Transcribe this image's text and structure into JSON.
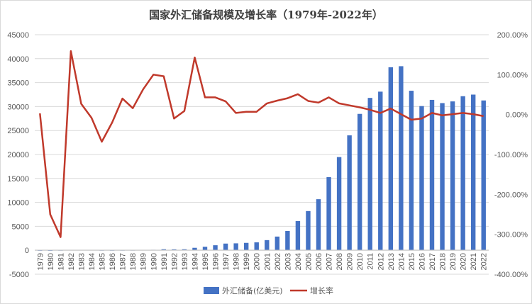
{
  "chart_data": {
    "type": "bar+line",
    "title": "国家外汇储备规模及增长率（1979年-2022年）",
    "categories": [
      "1979",
      "1980",
      "1981",
      "1982",
      "1983",
      "1984",
      "1985",
      "1986",
      "1987",
      "1988",
      "1989",
      "1990",
      "1991",
      "1992",
      "1993",
      "1994",
      "1995",
      "1996",
      "1997",
      "1998",
      "1999",
      "2000",
      "2001",
      "2002",
      "2003",
      "2004",
      "2005",
      "2006",
      "2007",
      "2008",
      "2009",
      "2010",
      "2011",
      "2012",
      "2013",
      "2014",
      "2015",
      "2016",
      "2017",
      "2018",
      "2019",
      "2020",
      "2021",
      "2022"
    ],
    "series": [
      {
        "name": "外汇储备(亿美元)",
        "type": "bar",
        "axis": "left",
        "color": "#4472c4",
        "values": [
          8,
          -13,
          27,
          70,
          89,
          82,
          26,
          21,
          29,
          34,
          56,
          111,
          217,
          194,
          212,
          516,
          736,
          1050,
          1399,
          1450,
          1547,
          1656,
          2122,
          2864,
          4033,
          6099,
          8189,
          10663,
          15282,
          19460,
          23992,
          28473,
          31811,
          33116,
          38213,
          38430,
          33304,
          30105,
          31399,
          30727,
          31079,
          32165,
          32502,
          31277
        ]
      },
      {
        "name": "增长率",
        "type": "line",
        "axis": "right",
        "color": "#c0392b",
        "values": [
          3,
          -250,
          -307,
          159,
          27,
          -8,
          -68,
          -20,
          40,
          16,
          63,
          100,
          96,
          -10,
          9,
          143,
          43,
          43,
          33,
          4,
          7,
          7,
          28,
          35,
          41,
          51,
          34,
          30,
          43,
          28,
          23,
          18,
          12,
          4,
          15,
          1,
          -13,
          -10,
          4,
          -2,
          1,
          4,
          1,
          -4
        ]
      }
    ],
    "y_left": {
      "min": -5000,
      "max": 45000,
      "step": 5000,
      "ticks": [
        "-5000",
        "0",
        "5000",
        "10000",
        "15000",
        "20000",
        "25000",
        "30000",
        "35000",
        "40000",
        "45000"
      ]
    },
    "y_right": {
      "min": -400,
      "max": 200,
      "step": 100,
      "ticks": [
        "-400.00%",
        "-300.00%",
        "-200.00%",
        "-100.00%",
        "0.00%",
        "100.00%",
        "200.00%"
      ]
    },
    "grid": true,
    "legend_position": "bottom"
  }
}
